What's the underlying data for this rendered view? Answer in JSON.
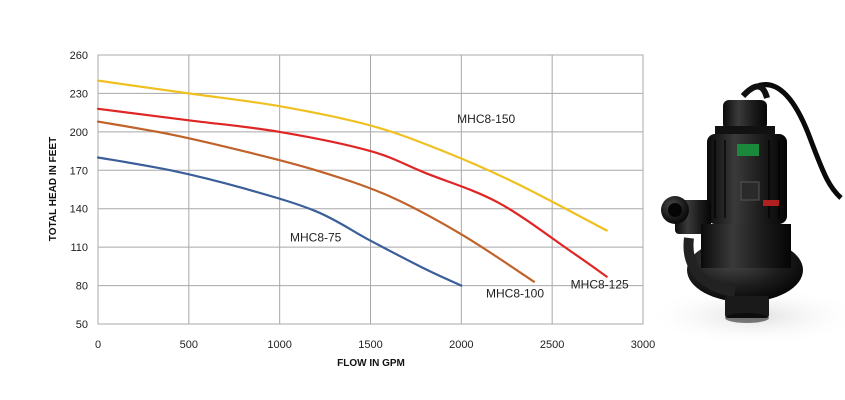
{
  "chart_data": {
    "type": "line",
    "xlabel": "FLOW IN GPM",
    "ylabel": "TOTAL HEAD IN FEET",
    "xlim": [
      0,
      3000
    ],
    "ylim": [
      50,
      260
    ],
    "xticks": [
      0,
      500,
      1000,
      1500,
      2000,
      2500,
      3000
    ],
    "yticks": [
      50,
      80,
      110,
      140,
      170,
      200,
      230,
      260
    ],
    "grid": true,
    "legend": "inline labels",
    "series": [
      {
        "name": "MHC8-75",
        "color": "#3b5f9a",
        "x": [
          0,
          400,
          800,
          1200,
          1500,
          1800,
          2000
        ],
        "y": [
          180,
          170,
          156,
          138,
          115,
          93,
          80
        ]
      },
      {
        "name": "MHC8-100",
        "color": "#c0622a",
        "x": [
          0,
          400,
          800,
          1200,
          1600,
          2000,
          2400
        ],
        "y": [
          208,
          198,
          185,
          170,
          150,
          120,
          83
        ]
      },
      {
        "name": "MHC8-125",
        "color": "#e02525",
        "x": [
          0,
          500,
          1000,
          1500,
          1800,
          2200,
          2600,
          2800
        ],
        "y": [
          218,
          209,
          200,
          185,
          168,
          145,
          107,
          87
        ]
      },
      {
        "name": "MHC8-150",
        "color": "#f0c020",
        "x": [
          0,
          500,
          1000,
          1500,
          1900,
          2300,
          2800
        ],
        "y": [
          240,
          230,
          220,
          205,
          185,
          160,
          123
        ]
      }
    ]
  },
  "product_image": {
    "icon": "submersible-pump-icon"
  }
}
